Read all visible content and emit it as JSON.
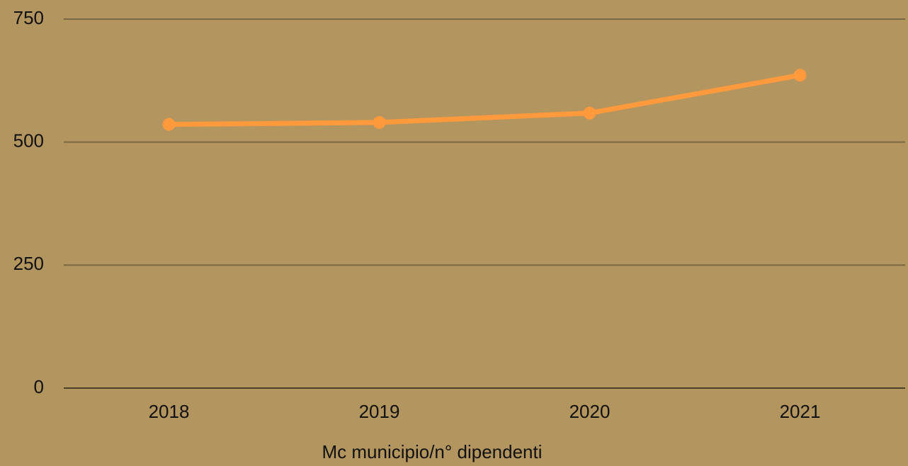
{
  "chart_data": {
    "type": "line",
    "categories": [
      "2018",
      "2019",
      "2020",
      "2021"
    ],
    "series": [
      {
        "name": "Mc municipio/n° dipendenti",
        "color": "#ff9a3c",
        "values": [
          536,
          540,
          559,
          636
        ]
      }
    ],
    "ylim": [
      0,
      750
    ],
    "yticks": [
      0,
      250,
      500,
      750
    ],
    "grid": true,
    "legend": "bottom"
  }
}
